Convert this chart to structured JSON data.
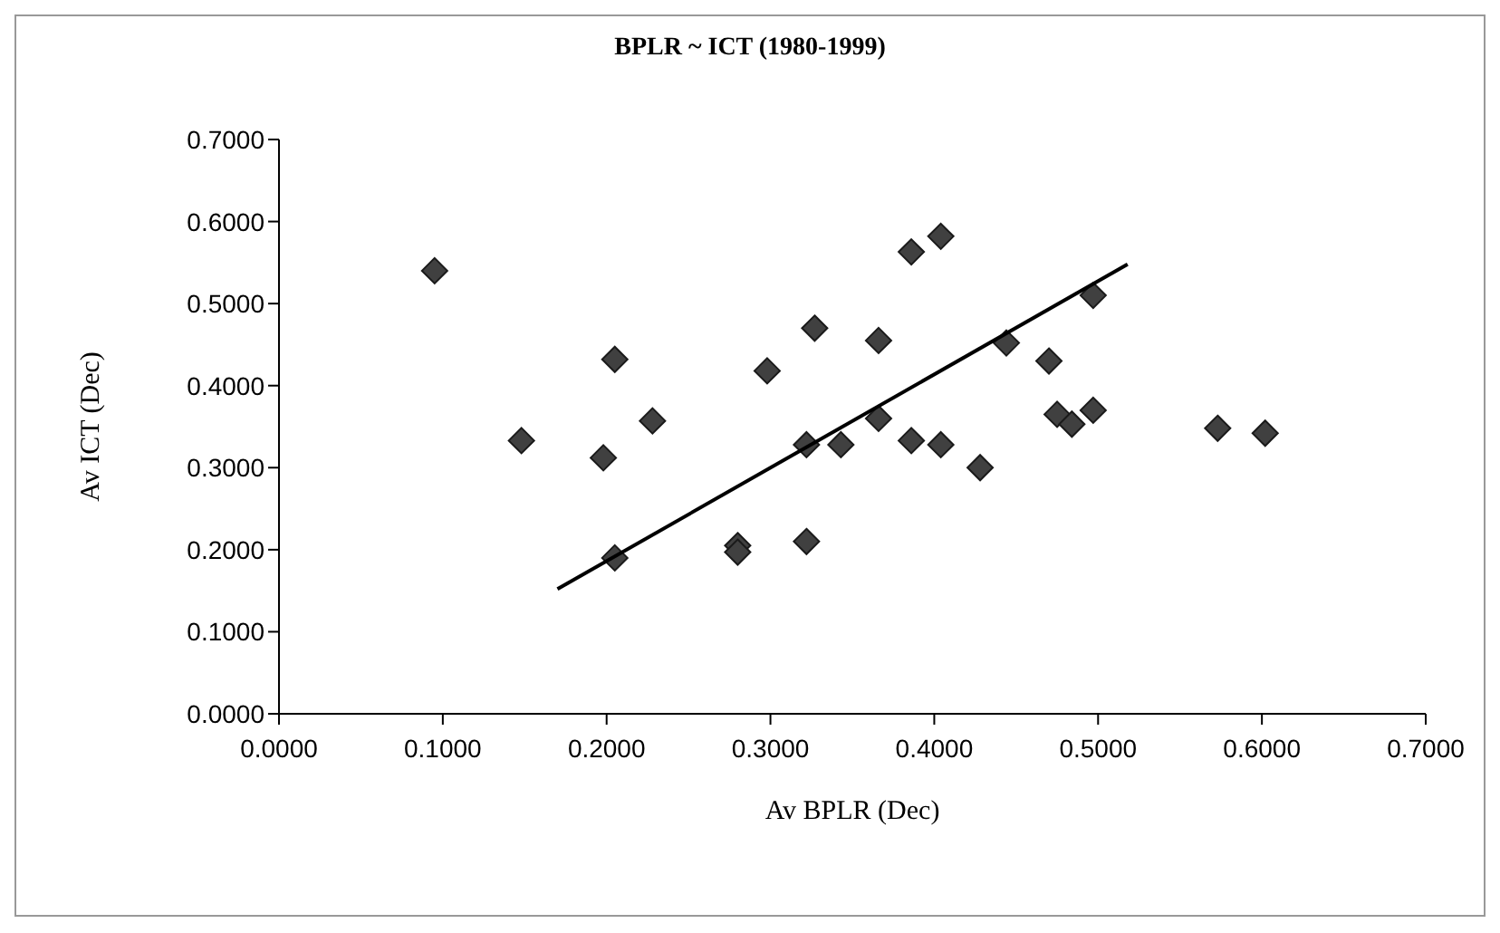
{
  "chart_data": {
    "type": "scatter",
    "title": "BPLR ~ ICT (1980-1999)",
    "xlabel": "Av BPLR (Dec)",
    "ylabel": "Av ICT (Dec)",
    "xlim": [
      0,
      0.7
    ],
    "ylim": [
      0,
      0.7
    ],
    "xticks": [
      {
        "value": 0,
        "label": "0.0000"
      },
      {
        "value": 0.1,
        "label": "0.1000"
      },
      {
        "value": 0.2,
        "label": "0.2000"
      },
      {
        "value": 0.3,
        "label": "0.3000"
      },
      {
        "value": 0.4,
        "label": "0.4000"
      },
      {
        "value": 0.5,
        "label": "0.5000"
      },
      {
        "value": 0.6,
        "label": "0.6000"
      },
      {
        "value": 0.7,
        "label": "0.7000"
      }
    ],
    "yticks": [
      {
        "value": 0,
        "label": "0.0000"
      },
      {
        "value": 0.1,
        "label": "0.1000"
      },
      {
        "value": 0.2,
        "label": "0.2000"
      },
      {
        "value": 0.3,
        "label": "0.3000"
      },
      {
        "value": 0.4,
        "label": "0.4000"
      },
      {
        "value": 0.5,
        "label": "0.5000"
      },
      {
        "value": 0.6,
        "label": "0.6000"
      },
      {
        "value": 0.7,
        "label": "0.7000"
      }
    ],
    "marker": "diamond",
    "series": [
      {
        "color": "#404040",
        "x": [
          0.095,
          0.148,
          0.198,
          0.205,
          0.205,
          0.228,
          0.28,
          0.28,
          0.298,
          0.322,
          0.322,
          0.327,
          0.343,
          0.366,
          0.366,
          0.386,
          0.386,
          0.404,
          0.404,
          0.428,
          0.444,
          0.47,
          0.475,
          0.484,
          0.497,
          0.497,
          0.573,
          0.602
        ],
        "values": [
          0.54,
          0.333,
          0.312,
          0.432,
          0.19,
          0.357,
          0.205,
          0.197,
          0.418,
          0.328,
          0.21,
          0.47,
          0.328,
          0.455,
          0.36,
          0.563,
          0.333,
          0.582,
          0.328,
          0.3,
          0.452,
          0.43,
          0.365,
          0.353,
          0.51,
          0.37,
          0.348,
          0.342
        ]
      },
      {
        "type": "line",
        "color": "#000000",
        "x": [
          0.17,
          0.518
        ],
        "values": [
          0.152,
          0.548
        ],
        "marker": "none",
        "line_style": "solid"
      }
    ]
  }
}
